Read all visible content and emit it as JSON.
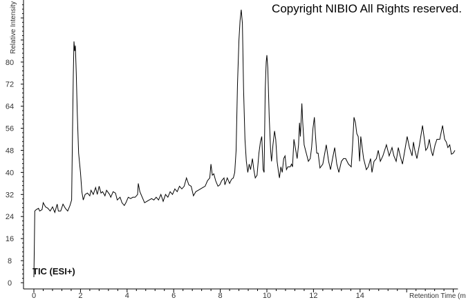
{
  "copyright": "Copyright NIBIO All Rights reserved.",
  "chart_data": {
    "type": "line",
    "title": "",
    "annotation": "TIC (ESI+)",
    "xlabel": "Retention Time (min)",
    "ylabel": "Relative Intensity",
    "xlim": [
      0,
      18.2
    ],
    "ylim": [
      0,
      102
    ],
    "x_ticks": [
      0,
      2,
      4,
      6,
      8,
      10,
      12,
      14
    ],
    "y_ticks": [
      0,
      8,
      16,
      24,
      32,
      40,
      48,
      56,
      64,
      72,
      80
    ],
    "grid": false,
    "line_color": "#000000",
    "points": [
      [
        0,
        2
      ],
      [
        0.02,
        14
      ],
      [
        0.04,
        26
      ],
      [
        0.1,
        26.5
      ],
      [
        0.2,
        27
      ],
      [
        0.25,
        26
      ],
      [
        0.35,
        26.5
      ],
      [
        0.4,
        29
      ],
      [
        0.5,
        27.5
      ],
      [
        0.6,
        27
      ],
      [
        0.7,
        26
      ],
      [
        0.8,
        27.5
      ],
      [
        0.9,
        25.5
      ],
      [
        1.0,
        28.5
      ],
      [
        1.05,
        26
      ],
      [
        1.15,
        26
      ],
      [
        1.25,
        28.5
      ],
      [
        1.35,
        27
      ],
      [
        1.45,
        26
      ],
      [
        1.55,
        28
      ],
      [
        1.62,
        30
      ],
      [
        1.66,
        55
      ],
      [
        1.69,
        75
      ],
      [
        1.72,
        87.5
      ],
      [
        1.75,
        84
      ],
      [
        1.78,
        86
      ],
      [
        1.82,
        76
      ],
      [
        1.86,
        62
      ],
      [
        1.92,
        47
      ],
      [
        2.0,
        40
      ],
      [
        2.06,
        33
      ],
      [
        2.12,
        30
      ],
      [
        2.2,
        32
      ],
      [
        2.3,
        32.5
      ],
      [
        2.4,
        31.5
      ],
      [
        2.45,
        33.5
      ],
      [
        2.55,
        32
      ],
      [
        2.65,
        34.5
      ],
      [
        2.72,
        32
      ],
      [
        2.8,
        35
      ],
      [
        2.88,
        32.5
      ],
      [
        2.95,
        33
      ],
      [
        3.05,
        31.5
      ],
      [
        3.12,
        33.5
      ],
      [
        3.25,
        32
      ],
      [
        3.3,
        31
      ],
      [
        3.4,
        33
      ],
      [
        3.5,
        32.5
      ],
      [
        3.58,
        30
      ],
      [
        3.7,
        31
      ],
      [
        3.78,
        29
      ],
      [
        3.88,
        28
      ],
      [
        3.95,
        29
      ],
      [
        4.05,
        31
      ],
      [
        4.15,
        30.5
      ],
      [
        4.25,
        31
      ],
      [
        4.35,
        31
      ],
      [
        4.45,
        32
      ],
      [
        4.48,
        36
      ],
      [
        4.55,
        33
      ],
      [
        4.65,
        31
      ],
      [
        4.75,
        29
      ],
      [
        4.85,
        29.5
      ],
      [
        4.95,
        30
      ],
      [
        5.05,
        30.5
      ],
      [
        5.15,
        30
      ],
      [
        5.25,
        31
      ],
      [
        5.35,
        30
      ],
      [
        5.45,
        32
      ],
      [
        5.55,
        29.5
      ],
      [
        5.65,
        32
      ],
      [
        5.75,
        31
      ],
      [
        5.85,
        33
      ],
      [
        5.95,
        32
      ],
      [
        6.05,
        34
      ],
      [
        6.15,
        33
      ],
      [
        6.25,
        35
      ],
      [
        6.35,
        34
      ],
      [
        6.45,
        35
      ],
      [
        6.55,
        38
      ],
      [
        6.65,
        35.5
      ],
      [
        6.75,
        35
      ],
      [
        6.85,
        31.5
      ],
      [
        6.95,
        33
      ],
      [
        7.05,
        33.5
      ],
      [
        7.15,
        34
      ],
      [
        7.25,
        34.5
      ],
      [
        7.35,
        35
      ],
      [
        7.45,
        37
      ],
      [
        7.55,
        38
      ],
      [
        7.6,
        43
      ],
      [
        7.66,
        39
      ],
      [
        7.72,
        39.5
      ],
      [
        7.8,
        37
      ],
      [
        7.9,
        35
      ],
      [
        7.98,
        35.5
      ],
      [
        8.06,
        37
      ],
      [
        8.16,
        38
      ],
      [
        8.2,
        35.5
      ],
      [
        8.3,
        38
      ],
      [
        8.4,
        36
      ],
      [
        8.48,
        37.5
      ],
      [
        8.56,
        38
      ],
      [
        8.62,
        40
      ],
      [
        8.68,
        48
      ],
      [
        8.74,
        72
      ],
      [
        8.8,
        88
      ],
      [
        8.85,
        95
      ],
      [
        8.9,
        99
      ],
      [
        8.95,
        94
      ],
      [
        9.0,
        70
      ],
      [
        9.06,
        52
      ],
      [
        9.12,
        44
      ],
      [
        9.18,
        40
      ],
      [
        9.24,
        43
      ],
      [
        9.3,
        41
      ],
      [
        9.38,
        45
      ],
      [
        9.44,
        41
      ],
      [
        9.5,
        38
      ],
      [
        9.58,
        39
      ],
      [
        9.66,
        47
      ],
      [
        9.72,
        51
      ],
      [
        9.78,
        53
      ],
      [
        9.84,
        41
      ],
      [
        9.88,
        40
      ],
      [
        9.93,
        70
      ],
      [
        9.97,
        80
      ],
      [
        10.0,
        82.5
      ],
      [
        10.04,
        78
      ],
      [
        10.1,
        60
      ],
      [
        10.16,
        48
      ],
      [
        10.2,
        44
      ],
      [
        10.26,
        50
      ],
      [
        10.33,
        55
      ],
      [
        10.38,
        52
      ],
      [
        10.44,
        44
      ],
      [
        10.5,
        40
      ],
      [
        10.54,
        38
      ],
      [
        10.6,
        42
      ],
      [
        10.66,
        40
      ],
      [
        10.72,
        45
      ],
      [
        10.78,
        46
      ],
      [
        10.84,
        41
      ],
      [
        10.9,
        42
      ],
      [
        11.0,
        42
      ],
      [
        11.06,
        43
      ],
      [
        11.1,
        42
      ],
      [
        11.16,
        52
      ],
      [
        11.22,
        49
      ],
      [
        11.3,
        45
      ],
      [
        11.36,
        50
      ],
      [
        11.4,
        58
      ],
      [
        11.44,
        53
      ],
      [
        11.5,
        65
      ],
      [
        11.54,
        58
      ],
      [
        11.6,
        50
      ],
      [
        11.66,
        48
      ],
      [
        11.72,
        46
      ],
      [
        11.78,
        44
      ],
      [
        11.86,
        45
      ],
      [
        11.92,
        49
      ],
      [
        11.98,
        56
      ],
      [
        12.04,
        60
      ],
      [
        12.08,
        54
      ],
      [
        12.14,
        47
      ],
      [
        12.2,
        47
      ],
      [
        12.28,
        41.6
      ],
      [
        12.4,
        43
      ],
      [
        12.55,
        50
      ],
      [
        12.65,
        44
      ],
      [
        12.73,
        41
      ],
      [
        12.82,
        45
      ],
      [
        12.91,
        49
      ],
      [
        13.0,
        43
      ],
      [
        13.09,
        40
      ],
      [
        13.2,
        44
      ],
      [
        13.29,
        45
      ],
      [
        13.38,
        45
      ],
      [
        13.5,
        43
      ],
      [
        13.62,
        42
      ],
      [
        13.68,
        50
      ],
      [
        13.74,
        60
      ],
      [
        13.8,
        58
      ],
      [
        13.86,
        54
      ],
      [
        13.92,
        53
      ],
      [
        13.98,
        44
      ],
      [
        14.03,
        53
      ],
      [
        14.15,
        45
      ],
      [
        14.27,
        41
      ],
      [
        14.35,
        42
      ],
      [
        14.45,
        45
      ],
      [
        14.51,
        40
      ],
      [
        14.6,
        44
      ],
      [
        14.7,
        45
      ],
      [
        14.78,
        48
      ],
      [
        14.87,
        44
      ],
      [
        14.98,
        46
      ],
      [
        15.13,
        50
      ],
      [
        15.25,
        46
      ],
      [
        15.37,
        49
      ],
      [
        15.45,
        46
      ],
      [
        15.55,
        44
      ],
      [
        15.64,
        49
      ],
      [
        15.72,
        46
      ],
      [
        15.82,
        43
      ],
      [
        15.92,
        48
      ],
      [
        16.02,
        53
      ],
      [
        16.12,
        49
      ],
      [
        16.23,
        46
      ],
      [
        16.29,
        51
      ],
      [
        16.35,
        48
      ],
      [
        16.44,
        45
      ],
      [
        16.55,
        50
      ],
      [
        16.68,
        57
      ],
      [
        16.76,
        52
      ],
      [
        16.82,
        48
      ],
      [
        16.9,
        49
      ],
      [
        16.97,
        52
      ],
      [
        17.05,
        48
      ],
      [
        17.12,
        46
      ],
      [
        17.22,
        50
      ],
      [
        17.3,
        52
      ],
      [
        17.42,
        52
      ],
      [
        17.54,
        57
      ],
      [
        17.63,
        52
      ],
      [
        17.7,
        51
      ],
      [
        17.77,
        49
      ],
      [
        17.85,
        50
      ],
      [
        17.92,
        46.6
      ],
      [
        18.0,
        47
      ],
      [
        18.07,
        48
      ]
    ]
  }
}
